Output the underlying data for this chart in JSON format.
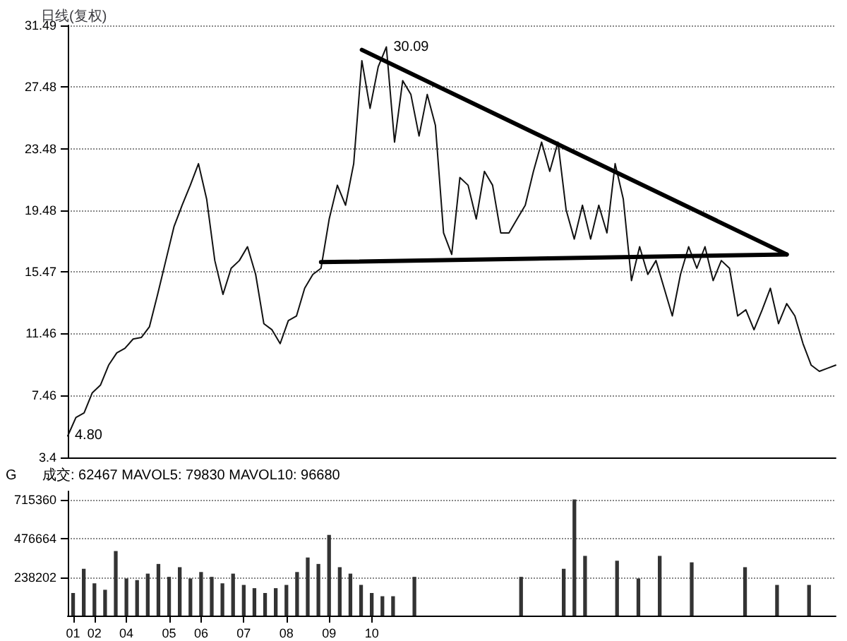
{
  "chart_data": [
    {
      "type": "line",
      "title": "日线(复权)",
      "categories": [
        null,
        null,
        null,
        null,
        null,
        null,
        null,
        null,
        null,
        null,
        null,
        null,
        null,
        null,
        null,
        null,
        null,
        null,
        null,
        null,
        null,
        null,
        null,
        null,
        null,
        null,
        null,
        null,
        null,
        null,
        null,
        null,
        null,
        null,
        null,
        null,
        null,
        null,
        null,
        null,
        null,
        null,
        null,
        null,
        null,
        null,
        null,
        null,
        null,
        null,
        null,
        null,
        null,
        null,
        null,
        null,
        null,
        null,
        null,
        null,
        null,
        null,
        null,
        null,
        null,
        null,
        null,
        null,
        null,
        null,
        null,
        null,
        null,
        null,
        null,
        null,
        null,
        null,
        null,
        null,
        null,
        null,
        null,
        null,
        null,
        null,
        null,
        null,
        null,
        null,
        null,
        null,
        null,
        null,
        null
      ],
      "ylim": [
        3.4,
        31.49
      ],
      "yticks": [
        3.4,
        7.46,
        11.46,
        15.47,
        19.48,
        23.48,
        27.48,
        31.49
      ],
      "tick_labels": "y",
      "grid": "y",
      "series": [
        {
          "color": "#111111",
          "value_labels": [
            "4.80",
            null,
            null,
            null,
            null,
            null,
            null,
            null,
            null,
            null,
            null,
            null,
            null,
            null,
            null,
            null,
            null,
            null,
            null,
            null,
            null,
            null,
            null,
            null,
            null,
            null,
            null,
            null,
            null,
            null,
            null,
            null,
            null,
            null,
            null,
            null,
            null,
            null,
            null,
            "30.09",
            null,
            null,
            null,
            null,
            null,
            null,
            null,
            null,
            null,
            null,
            null,
            null,
            null,
            null,
            null,
            null,
            null,
            null,
            null,
            null,
            null,
            null,
            null,
            null,
            null,
            null,
            null,
            null,
            null,
            null,
            null,
            null,
            null,
            null,
            null,
            null,
            null,
            null,
            null,
            null,
            null,
            null,
            null,
            null,
            null,
            null,
            null,
            null,
            null,
            null,
            null,
            null,
            null,
            null,
            null
          ],
          "values": [
            4.8,
            6.0,
            6.3,
            7.6,
            8.1,
            9.4,
            10.2,
            10.5,
            11.1,
            11.2,
            11.9,
            14.0,
            16.2,
            18.4,
            19.8,
            21.1,
            22.5,
            20.2,
            16.2,
            14.0,
            15.7,
            16.2,
            17.1,
            15.3,
            12.1,
            11.7,
            10.8,
            12.3,
            12.6,
            14.4,
            15.3,
            15.7,
            18.9,
            21.1,
            19.8,
            22.5,
            29.2,
            26.1,
            28.8,
            30.09,
            23.9,
            27.9,
            27.0,
            24.3,
            27.0,
            25.0,
            18.0,
            16.6,
            21.6,
            21.1,
            18.9,
            22.0,
            21.1,
            18.0,
            18.0,
            18.9,
            19.8,
            22.0,
            23.9,
            22.0,
            23.9,
            19.5,
            17.6,
            19.8,
            17.6,
            19.8,
            18.0,
            22.5,
            20.2,
            14.9,
            17.1,
            15.3,
            16.2,
            14.4,
            12.6,
            15.3,
            17.1,
            15.7,
            17.1,
            14.9,
            16.2,
            15.7,
            12.6,
            13.0,
            11.7,
            13.0,
            14.4,
            12.1,
            13.4,
            12.6,
            10.8,
            9.4,
            9.0,
            9.2,
            9.4
          ]
        },
        {
          "color": "#000000",
          "values": [
            null,
            null,
            null,
            null,
            null,
            null,
            null,
            null,
            null,
            null,
            null,
            null,
            null,
            null,
            null,
            null,
            null,
            null,
            null,
            null,
            null,
            null,
            null,
            null,
            null,
            null,
            null,
            null,
            null,
            null,
            null,
            null,
            null,
            null,
            null,
            null,
            29.9,
            null,
            null,
            null,
            null,
            null,
            null,
            null,
            null,
            null,
            null,
            null,
            null,
            null,
            null,
            null,
            null,
            null,
            null,
            null,
            null,
            null,
            null,
            null,
            null,
            null,
            null,
            null,
            null,
            null,
            null,
            null,
            null,
            null,
            null,
            null,
            null,
            null,
            null,
            null,
            null,
            null,
            null,
            null,
            null,
            null,
            null,
            null,
            null,
            null,
            null,
            null,
            16.6,
            null,
            null,
            null,
            null,
            null,
            null
          ]
        },
        {
          "color": "#000000",
          "values": [
            null,
            null,
            null,
            null,
            null,
            null,
            null,
            null,
            null,
            null,
            null,
            null,
            null,
            null,
            null,
            null,
            null,
            null,
            null,
            null,
            null,
            null,
            null,
            null,
            null,
            null,
            null,
            null,
            null,
            null,
            null,
            16.1,
            null,
            null,
            null,
            null,
            null,
            null,
            null,
            null,
            null,
            null,
            null,
            null,
            null,
            null,
            null,
            null,
            null,
            null,
            null,
            null,
            null,
            null,
            null,
            null,
            null,
            null,
            null,
            null,
            null,
            null,
            null,
            null,
            null,
            null,
            null,
            null,
            null,
            null,
            null,
            null,
            null,
            null,
            null,
            null,
            null,
            null,
            null,
            null,
            null,
            null,
            null,
            null,
            null,
            null,
            null,
            null,
            16.6,
            null,
            null,
            null,
            null,
            null,
            null
          ]
        }
      ]
    },
    {
      "type": "bar",
      "categories": [
        "01",
        null,
        "02",
        null,
        null,
        "04",
        null,
        null,
        null,
        "05",
        null,
        null,
        "06",
        null,
        null,
        null,
        "07",
        null,
        null,
        null,
        "08",
        null,
        null,
        null,
        "09",
        null,
        null,
        null,
        "10",
        null,
        null,
        null,
        null,
        null,
        null,
        null,
        null,
        null,
        null,
        null,
        null,
        null,
        null,
        null,
        null,
        null,
        null,
        null,
        null,
        null,
        null,
        null,
        null,
        null,
        null,
        null,
        null,
        null,
        null,
        null,
        null,
        null,
        null,
        null,
        null,
        null,
        null,
        null,
        null,
        null,
        null,
        null
      ],
      "ylim": [
        0,
        770000
      ],
      "yticks": [
        238202,
        476664,
        715360
      ],
      "grid": "y",
      "annotations": [
        "G",
        "成交: 62467 MAVOL5: 79830 MAVOL10: 96680"
      ],
      "series": [
        {
          "color": "#333333",
          "values": [
            140000,
            290000,
            200000,
            160000,
            400000,
            230000,
            220000,
            260000,
            320000,
            240000,
            300000,
            230000,
            270000,
            240000,
            200000,
            260000,
            190000,
            170000,
            140000,
            170000,
            190000,
            270000,
            360000,
            320000,
            500000,
            300000,
            260000,
            190000,
            140000,
            120000,
            120000,
            null,
            240000,
            null,
            null,
            null,
            null,
            null,
            null,
            null,
            null,
            null,
            240000,
            null,
            null,
            null,
            290000,
            720000,
            370000,
            null,
            null,
            340000,
            null,
            230000,
            null,
            370000,
            null,
            null,
            330000,
            null,
            null,
            null,
            null,
            300000,
            null,
            null,
            190000,
            null,
            null,
            190000,
            null,
            null
          ]
        }
      ]
    }
  ]
}
